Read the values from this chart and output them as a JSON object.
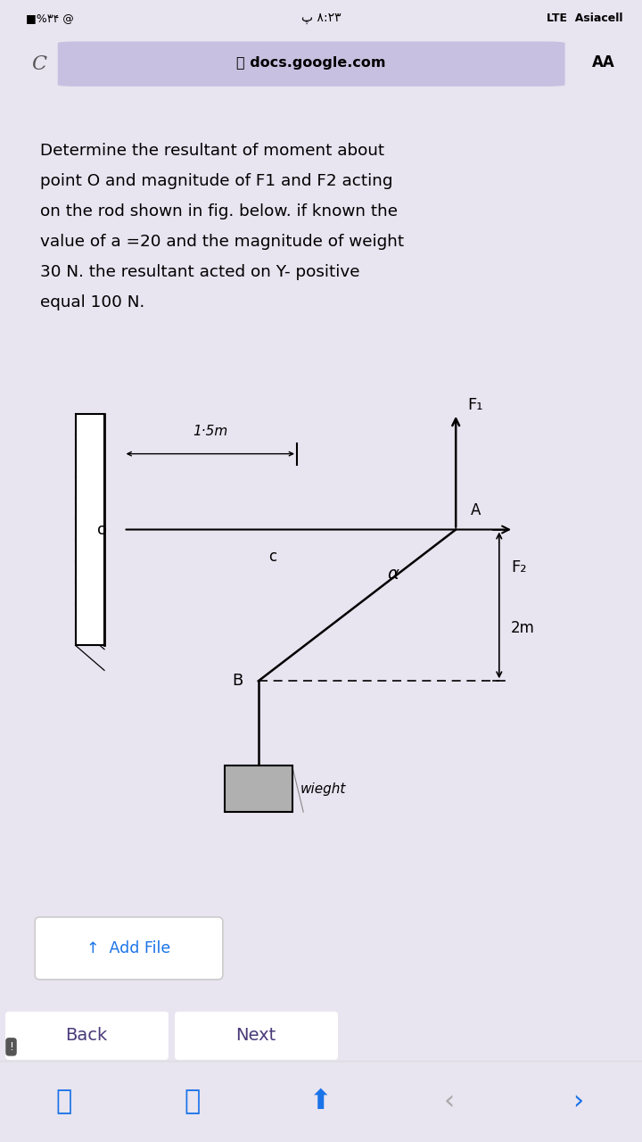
{
  "bg_color": "#e8e4f0",
  "status_bg": "#e8e4f0",
  "status_left": "■%۳۴ @",
  "status_center": "پ ۸:۲۳",
  "status_right": "LTE  Asiacell",
  "url_bg": "#ddd8ec",
  "url_text": "docs.google.com",
  "url_aa": "AA",
  "purple_bar_color": "#6633aa",
  "white_bg": "#ffffff",
  "problem_text_line1": "Determine the resultant of moment about",
  "problem_text_line2": "point O and magnitude of F1 and F2 acting",
  "problem_text_line3": "on the rod shown in fig. below. if known the",
  "problem_text_line4": "value of a =20 and the magnitude of weight",
  "problem_text_line5": "30 N. the resultant acted on Y- positive",
  "problem_text_line6": "equal 100 N.",
  "lbl_15m": "1·5m",
  "lbl_O": "o",
  "lbl_C": "c",
  "lbl_A": "A",
  "lbl_alpha": "α",
  "lbl_F1": "F₁",
  "lbl_F2": "F₂",
  "lbl_2m": "2m",
  "lbl_B": "B",
  "lbl_weight": "wieght",
  "add_file_text": "↑  Add File",
  "back_text": "Back",
  "next_text": "Next",
  "nav_bg": "#e8e4f0",
  "btn_color": "#ffffff",
  "toolbar_bg": "#ffffff",
  "blue": "#1a73e8",
  "gray": "#aaaaaa"
}
